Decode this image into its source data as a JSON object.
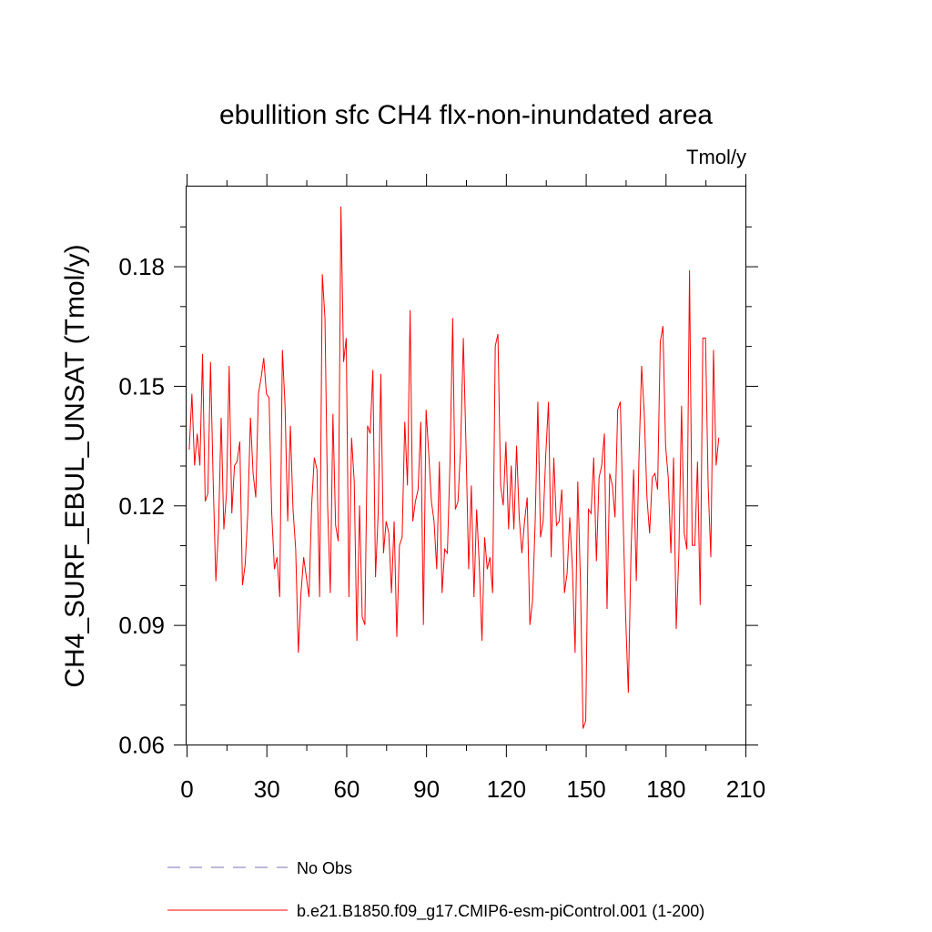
{
  "chart_data": {
    "type": "line",
    "title": "ebullition sfc CH4 flx-non-inundated area",
    "units_label": "Tmol/y",
    "xlabel": "",
    "ylabel": "CH4_SURF_EBUL_UNSAT  (Tmol/y)",
    "xlim": [
      0,
      210
    ],
    "ylim": [
      0.06,
      0.2
    ],
    "x_ticks": [
      0,
      30,
      60,
      90,
      120,
      150,
      180,
      210
    ],
    "x_tick_labels": [
      "0",
      "30",
      "60",
      "90",
      "120",
      "150",
      "180",
      "210"
    ],
    "y_ticks": [
      0.06,
      0.09,
      0.12,
      0.15,
      0.18
    ],
    "y_tick_labels": [
      "0.06",
      "0.09",
      "0.12",
      "0.15",
      "0.18"
    ],
    "grid": false,
    "legend": [
      {
        "label": "No Obs",
        "color": "#7a70b8",
        "style": "dashed"
      },
      {
        "label": "b.e21.B1850.f09_g17.CMIP6-esm-piControl.001 (1-200)",
        "color": "#ff0000",
        "style": "solid"
      }
    ],
    "series": [
      {
        "name": "b.e21.B1850.f09_g17.CMIP6-esm-piControl.001 (1-200)",
        "color": "#ff0000",
        "x_start": 1,
        "values": [
          0.134,
          0.148,
          0.13,
          0.138,
          0.13,
          0.158,
          0.121,
          0.123,
          0.156,
          0.126,
          0.101,
          0.114,
          0.142,
          0.114,
          0.123,
          0.155,
          0.118,
          0.13,
          0.131,
          0.136,
          0.1,
          0.105,
          0.118,
          0.142,
          0.128,
          0.122,
          0.148,
          0.152,
          0.157,
          0.148,
          0.147,
          0.118,
          0.104,
          0.107,
          0.097,
          0.159,
          0.145,
          0.116,
          0.14,
          0.119,
          0.109,
          0.083,
          0.098,
          0.107,
          0.102,
          0.097,
          0.12,
          0.132,
          0.129,
          0.097,
          0.178,
          0.167,
          0.12,
          0.098,
          0.143,
          0.115,
          0.111,
          0.195,
          0.156,
          0.162,
          0.097,
          0.137,
          0.126,
          0.086,
          0.12,
          0.092,
          0.09,
          0.14,
          0.138,
          0.154,
          0.102,
          0.118,
          0.153,
          0.108,
          0.116,
          0.113,
          0.098,
          0.116,
          0.087,
          0.11,
          0.112,
          0.141,
          0.125,
          0.169,
          0.116,
          0.121,
          0.124,
          0.141,
          0.09,
          0.144,
          0.133,
          0.121,
          0.116,
          0.104,
          0.131,
          0.098,
          0.109,
          0.108,
          0.131,
          0.167,
          0.119,
          0.121,
          0.135,
          0.162,
          0.135,
          0.104,
          0.125,
          0.097,
          0.119,
          0.105,
          0.086,
          0.112,
          0.104,
          0.107,
          0.098,
          0.16,
          0.163,
          0.125,
          0.12,
          0.136,
          0.114,
          0.13,
          0.114,
          0.135,
          0.117,
          0.108,
          0.116,
          0.122,
          0.09,
          0.096,
          0.116,
          0.146,
          0.112,
          0.116,
          0.133,
          0.146,
          0.107,
          0.132,
          0.115,
          0.116,
          0.124,
          0.098,
          0.103,
          0.117,
          0.104,
          0.083,
          0.126,
          0.101,
          0.064,
          0.066,
          0.119,
          0.118,
          0.132,
          0.106,
          0.127,
          0.13,
          0.138,
          0.094,
          0.128,
          0.125,
          0.117,
          0.144,
          0.146,
          0.118,
          0.092,
          0.073,
          0.108,
          0.129,
          0.101,
          0.132,
          0.155,
          0.143,
          0.122,
          0.113,
          0.127,
          0.128,
          0.124,
          0.161,
          0.165,
          0.135,
          0.127,
          0.108,
          0.132,
          0.089,
          0.108,
          0.145,
          0.113,
          0.109,
          0.179,
          0.11,
          0.11,
          0.131,
          0.095,
          0.162,
          0.162,
          0.125,
          0.107,
          0.159,
          0.13,
          0.137
        ]
      }
    ]
  }
}
